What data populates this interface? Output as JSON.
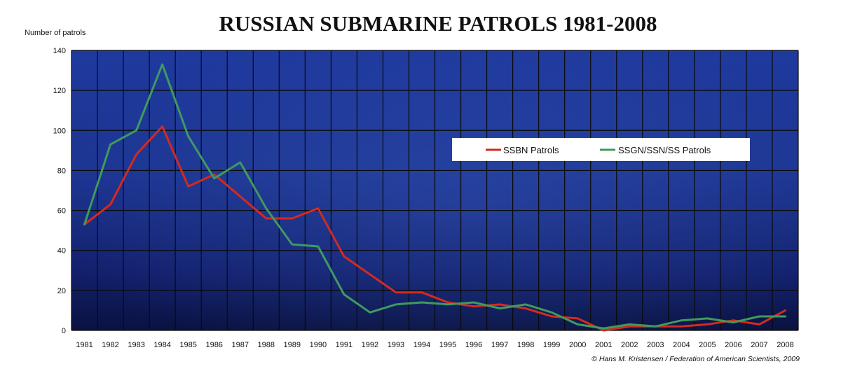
{
  "chart_data": {
    "type": "line",
    "title": "RUSSIAN SUBMARINE PATROLS 1981-2008",
    "ylabel": "Number of patrols",
    "xlabel": "",
    "ylim": [
      0,
      140
    ],
    "yticks": [
      0,
      20,
      40,
      60,
      80,
      100,
      120,
      140
    ],
    "categories": [
      "1981",
      "1982",
      "1983",
      "1984",
      "1985",
      "1986",
      "1987",
      "1988",
      "1989",
      "1990",
      "1991",
      "1992",
      "1993",
      "1994",
      "1995",
      "1996",
      "1997",
      "1998",
      "1999",
      "2000",
      "2001",
      "2002",
      "2003",
      "2004",
      "2005",
      "2006",
      "2007",
      "2008"
    ],
    "series": [
      {
        "name": "SSBN Patrols",
        "color": "#d42a1e",
        "values": [
          53,
          63,
          88,
          102,
          72,
          78,
          67,
          56,
          56,
          61,
          37,
          28,
          19,
          19,
          14,
          12,
          13,
          11,
          7,
          6,
          0,
          2,
          2,
          2,
          3,
          5,
          3,
          10
        ]
      },
      {
        "name": "SSGN/SSN/SS Patrols",
        "color": "#3f9a5f",
        "values": [
          53,
          93,
          100,
          133,
          97,
          76,
          84,
          61,
          43,
          42,
          18,
          9,
          13,
          14,
          13,
          14,
          11,
          13,
          9,
          3,
          1,
          3,
          2,
          5,
          6,
          4,
          7,
          7
        ]
      }
    ],
    "legend": "top-right",
    "grid": true,
    "background_color": "#1a2d8a",
    "credit": "© Hans M. Kristensen / Federation of American Scientists, 2009"
  }
}
